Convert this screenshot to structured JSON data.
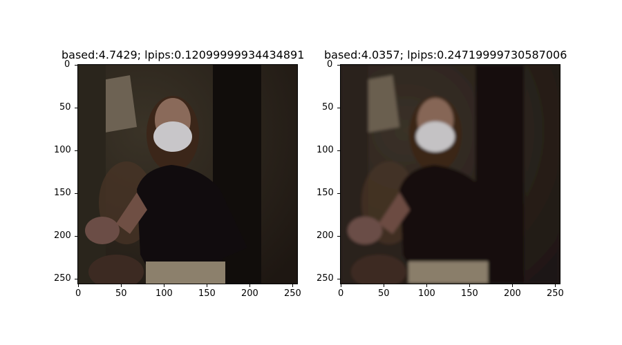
{
  "panels": [
    {
      "title": "based:4.7429; lpips:0.12099999934434891",
      "x_ticks": [
        "0",
        "50",
        "100",
        "150",
        "200",
        "250"
      ],
      "y_ticks": [
        "0",
        "50",
        "100",
        "150",
        "200",
        "250"
      ],
      "image_content": "woman-in-face-mask-sharp"
    },
    {
      "title": "based:4.0357; lpips:0.24719999730587006",
      "x_ticks": [
        "0",
        "50",
        "100",
        "150",
        "200",
        "250"
      ],
      "y_ticks": [
        "0",
        "50",
        "100",
        "150",
        "200",
        "250"
      ],
      "image_content": "woman-in-face-mask-blurred"
    }
  ]
}
